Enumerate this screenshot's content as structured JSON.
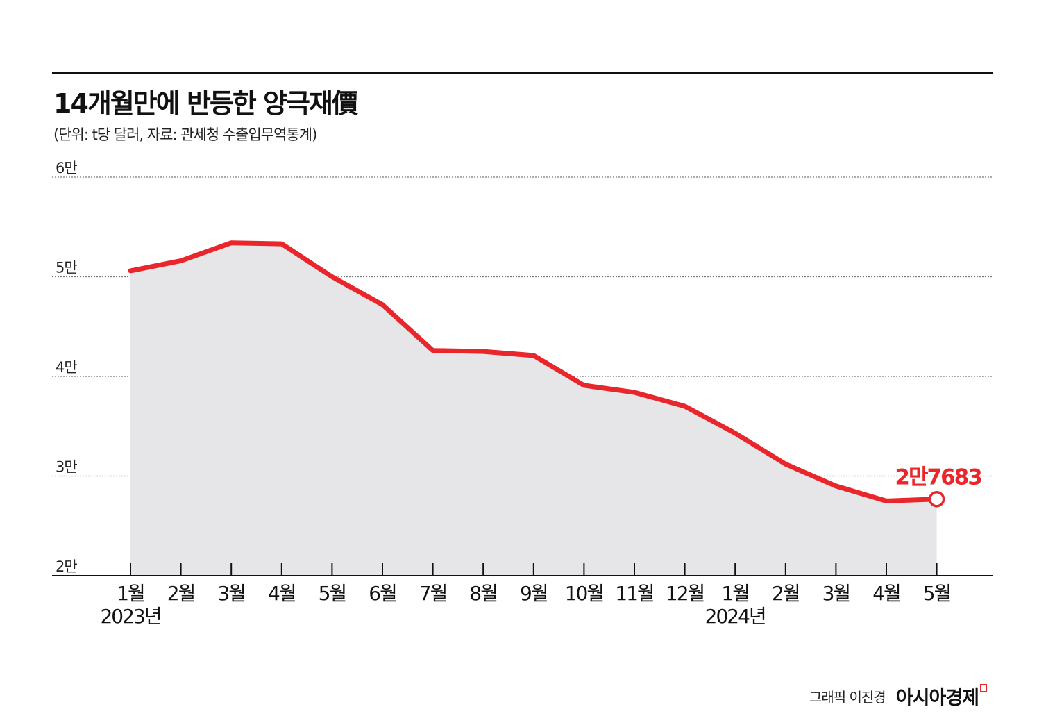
{
  "header": {
    "title": "14개월만에 반등한 양극재價",
    "subtitle": "(단위: t당 달러, 자료: 관세청 수출입무역통계)"
  },
  "footer": {
    "credit": "그래픽 이진경",
    "brand": "아시아경제"
  },
  "colors": {
    "line": "#e8262b",
    "area": "#e6e6e8",
    "grid": "#777777",
    "axis": "#111111"
  },
  "chart_data": {
    "type": "area",
    "title": "14개월만에 반등한 양극재價",
    "subtitle": "(단위: t당 달러, 자료: 관세청 수출입무역통계)",
    "categories": [
      "1월",
      "2월",
      "3월",
      "4월",
      "5월",
      "6월",
      "7월",
      "8월",
      "9월",
      "10월",
      "11월",
      "12월",
      "1월",
      "2월",
      "3월",
      "4월",
      "5월"
    ],
    "year_labels": [
      {
        "index": 0,
        "label": "2023년"
      },
      {
        "index": 12,
        "label": "2024년"
      }
    ],
    "series": [
      {
        "values": [
          50600,
          51600,
          53400,
          53300,
          50000,
          47200,
          42600,
          42500,
          42100,
          39100,
          38400,
          37000,
          34300,
          31200,
          29000,
          27500,
          27683
        ]
      }
    ],
    "y_ticks": [
      {
        "value": 20000,
        "label": "2만"
      },
      {
        "value": 30000,
        "label": "3만"
      },
      {
        "value": 40000,
        "label": "4만"
      },
      {
        "value": 50000,
        "label": "5만"
      },
      {
        "value": 60000,
        "label": "6만"
      }
    ],
    "ylim": [
      20000,
      60000
    ],
    "grid": true,
    "grid_style": "dotted",
    "annotation": {
      "index": 16,
      "label": "2만7683"
    }
  }
}
